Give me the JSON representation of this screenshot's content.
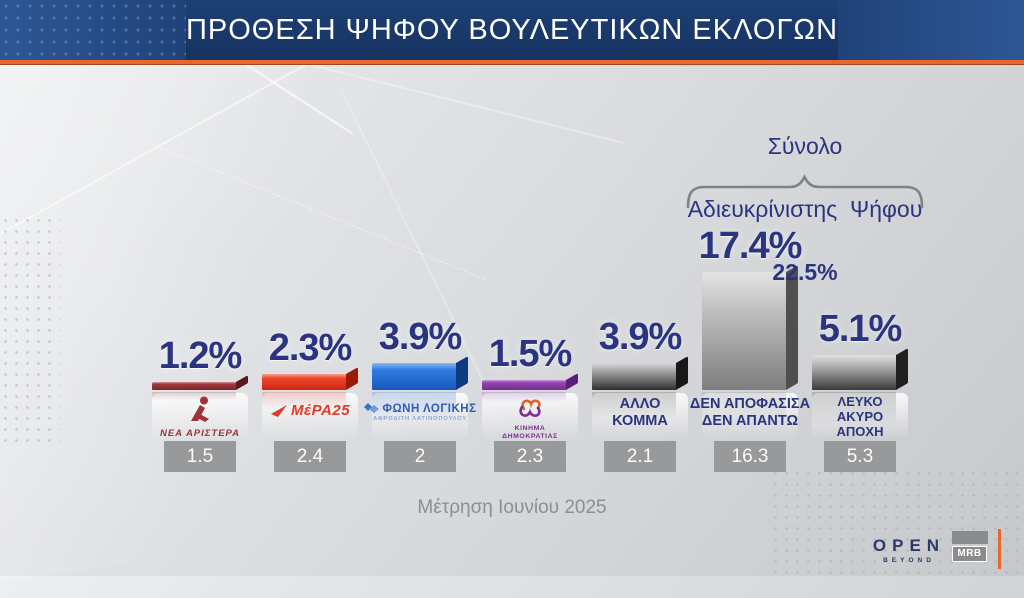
{
  "header": {
    "title": "ΠΡΟΘΕΣΗ ΨΗΦΟΥ ΒΟΥΛΕΥΤΙΚΩΝ ΕΚΛΟΓΩΝ"
  },
  "annotation": {
    "line1": "Σύνολο",
    "line2": "Αδιευκρίνιστης  Ψήφου",
    "value": "22.5%"
  },
  "bars": [
    {
      "value": 1.2,
      "pct": "1.2%",
      "prev": "1.5",
      "party": "ΝΕΑ ΑΡΙΣΤΕΡΑ",
      "logo": {
        "text": "ΝΕΑ ΑΡΙΣΤΕΡΑ"
      },
      "colors": {
        "hi": "#d49799",
        "top": "#a2383c",
        "bottom": "#7a272b",
        "side": "#5a191d"
      }
    },
    {
      "value": 2.3,
      "pct": "2.3%",
      "prev": "2.4",
      "party": "ΜέΡΑ25",
      "logo": {
        "text": "ΜέΡΑ25"
      },
      "colors": {
        "hi": "#f8a28c",
        "top": "#e94a2c",
        "bottom": "#cf2512",
        "side": "#9e1808"
      }
    },
    {
      "value": 3.9,
      "pct": "3.9%",
      "prev": "2",
      "party": "ΦΩΝΗ ΛΟΓΙΚΗΣ",
      "logo": {
        "text": "ΦΩΝΗ ΛΟΓΙΚΗΣ",
        "sub": "ΑΦΡΟΔΙΤΗ ΛΑΤΙΝΟΠΟΥΛΟΥ"
      },
      "colors": {
        "hi": "#8cb6f0",
        "top": "#2f7ce2",
        "bottom": "#1857bd",
        "side": "#0e3a80"
      }
    },
    {
      "value": 1.5,
      "pct": "1.5%",
      "prev": "2.3",
      "party": "ΚΙΝΗΜΑ ΔΗΜΟΚΡΑΤΙΑΣ",
      "logo": {
        "lines": [
          "ΚΙΝΗΜΑ",
          "ΔΗΜΟΚΡΑΤΙΑΣ"
        ]
      },
      "colors": {
        "hi": "#c79ad8",
        "top": "#9246ab",
        "bottom": "#772c93",
        "side": "#5b1f78"
      }
    },
    {
      "value": 3.9,
      "pct": "3.9%",
      "prev": "2.1",
      "party": "ΑΛΛΟ ΚΟΜΜΑ",
      "label_lines": [
        "ΑΛΛΟ",
        "ΚΟΜΜΑ"
      ],
      "colors": {
        "hi": "#d8d8d8",
        "top": "#ababab",
        "bottom": "#2e2e2e",
        "side": "#181818"
      }
    },
    {
      "value": 17.4,
      "pct": "17.4%",
      "prev": "16.3",
      "party": "ΔΕΝ ΑΠΟΦΑΣΙΣΑ ΔΕΝ ΑΠΑΝΤΩ",
      "label_lines": [
        "ΔΕΝ ΑΠΟΦΑΣΙΣΑ",
        "ΔΕΝ ΑΠΑΝΤΩ"
      ],
      "colors": {
        "hi": "#e3e3e3",
        "top": "#c6c6c6",
        "bottom": "#7d7d7d",
        "side": "#4f4f4f"
      }
    },
    {
      "value": 5.1,
      "pct": "5.1%",
      "prev": "5.3",
      "party": "ΛΕΥΚΟ ΑΚΥΡΟ ΑΠΟΧΗ",
      "label_lines": [
        "ΛΕΥΚΟ",
        "ΑΚΥΡΟ",
        "ΑΠΟΧΗ"
      ],
      "colors": {
        "hi": "#e0e0e0",
        "top": "#b9b9b9",
        "bottom": "#3a3a3a",
        "side": "#202020"
      }
    }
  ],
  "footer": {
    "note": "Μέτρηση Ιουνίου 2025",
    "open": "OPEN",
    "open_sub": "BEYOND",
    "mrb": "MRB"
  },
  "colors": {
    "header_blue": "#1d3e72",
    "accent_orange": "#e8672f",
    "percent_navy": "#2b3480",
    "value_box_gray": "#98999b",
    "bracket_gray": "#7e8387"
  },
  "chart_data": {
    "type": "bar",
    "title": "ΠΡΟΘΕΣΗ ΨΗΦΟΥ ΒΟΥΛΕΥΤΙΚΩΝ ΕΚΛΟΓΩΝ",
    "categories": [
      "ΝΕΑ ΑΡΙΣΤΕΡΑ",
      "ΜέΡΑ25",
      "ΦΩΝΗ ΛΟΓΙΚΗΣ",
      "ΚΙΝΗΜΑ ΔΗΜΟΚΡΑΤΙΑΣ",
      "ΑΛΛΟ ΚΟΜΜΑ",
      "ΔΕΝ ΑΠΟΦΑΣΙΣΑ ΔΕΝ ΑΠΑΝΤΩ",
      "ΛΕΥΚΟ ΑΚΥΡΟ ΑΠΟΧΗ"
    ],
    "values": [
      1.2,
      2.3,
      3.9,
      1.5,
      3.9,
      17.4,
      5.1
    ],
    "box_values": [
      1.5,
      2.4,
      2,
      2.3,
      2.1,
      16.3,
      5.3
    ],
    "bar_colors": [
      "#8a2f33",
      "#e2341d",
      "#1f6fd6",
      "#8e3fa5",
      "#565656",
      "#a8a8a8",
      "#7a7a7a"
    ],
    "annotation": {
      "label": "Σύνολο Αδιευκρίνιστης Ψήφου",
      "value": 22.5,
      "covers": [
        "ΔΕΝ ΑΠΟΦΑΣΙΣΑ ΔΕΝ ΑΠΑΝΤΩ",
        "ΛΕΥΚΟ ΑΚΥΡΟ ΑΠΟΧΗ"
      ]
    },
    "footnote": "Μέτρηση Ιουνίου 2025",
    "ylim": [
      0,
      20
    ],
    "grid": false,
    "legend": false
  }
}
